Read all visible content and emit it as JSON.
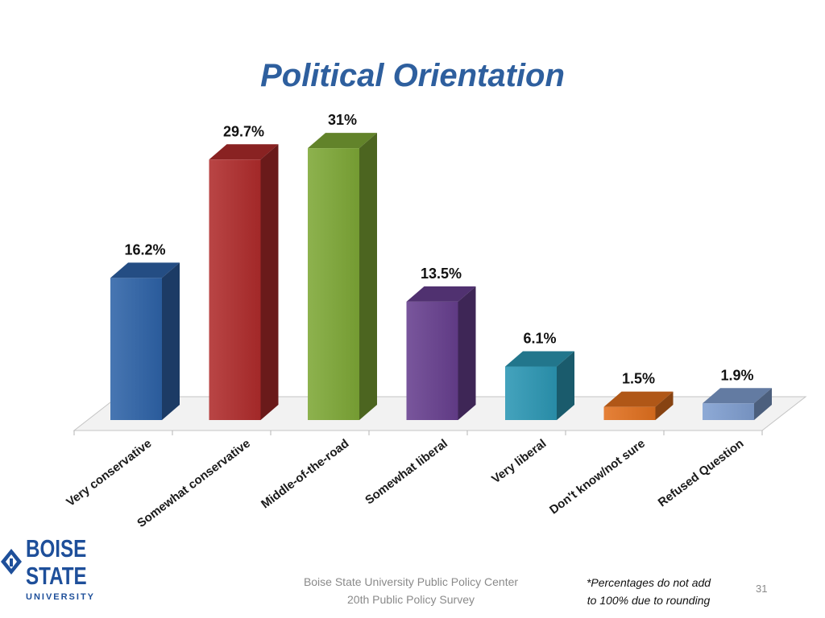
{
  "slide": {
    "title": "Political Orientation",
    "source_line1": "Boise State University  Public Policy Center",
    "source_line2": "20th Public Policy Survey",
    "note_line1": "*Percentages do not add",
    "note_line2": "to 100% due to rounding",
    "page_number": "31"
  },
  "logo": {
    "line1": "BOISE",
    "line2": "STATE",
    "line3": "UNIVERSITY",
    "color": "#1e4f9a"
  },
  "chart_data": {
    "type": "bar",
    "title": "Political Orientation",
    "xlabel": "",
    "ylabel": "",
    "ylim": [
      0,
      35
    ],
    "grid": false,
    "legend": false,
    "categories": [
      "Very conservative",
      "Somewhat conservative",
      "Middle-of-the-road",
      "Somewhat liberal",
      "Very liberal",
      "Don't know/not sure",
      "Refused Question"
    ],
    "values": [
      16.2,
      29.7,
      31,
      13.5,
      6.1,
      1.5,
      1.9
    ],
    "data_labels": [
      "16.2%",
      "29.7%",
      "31%",
      "13.5%",
      "6.1%",
      "1.5%",
      "1.9%"
    ],
    "colors": [
      "#2e63a8",
      "#b02c2c",
      "#7ea836",
      "#673f8f",
      "#2b97b4",
      "#e1701e",
      "#7f9ed0"
    ]
  }
}
